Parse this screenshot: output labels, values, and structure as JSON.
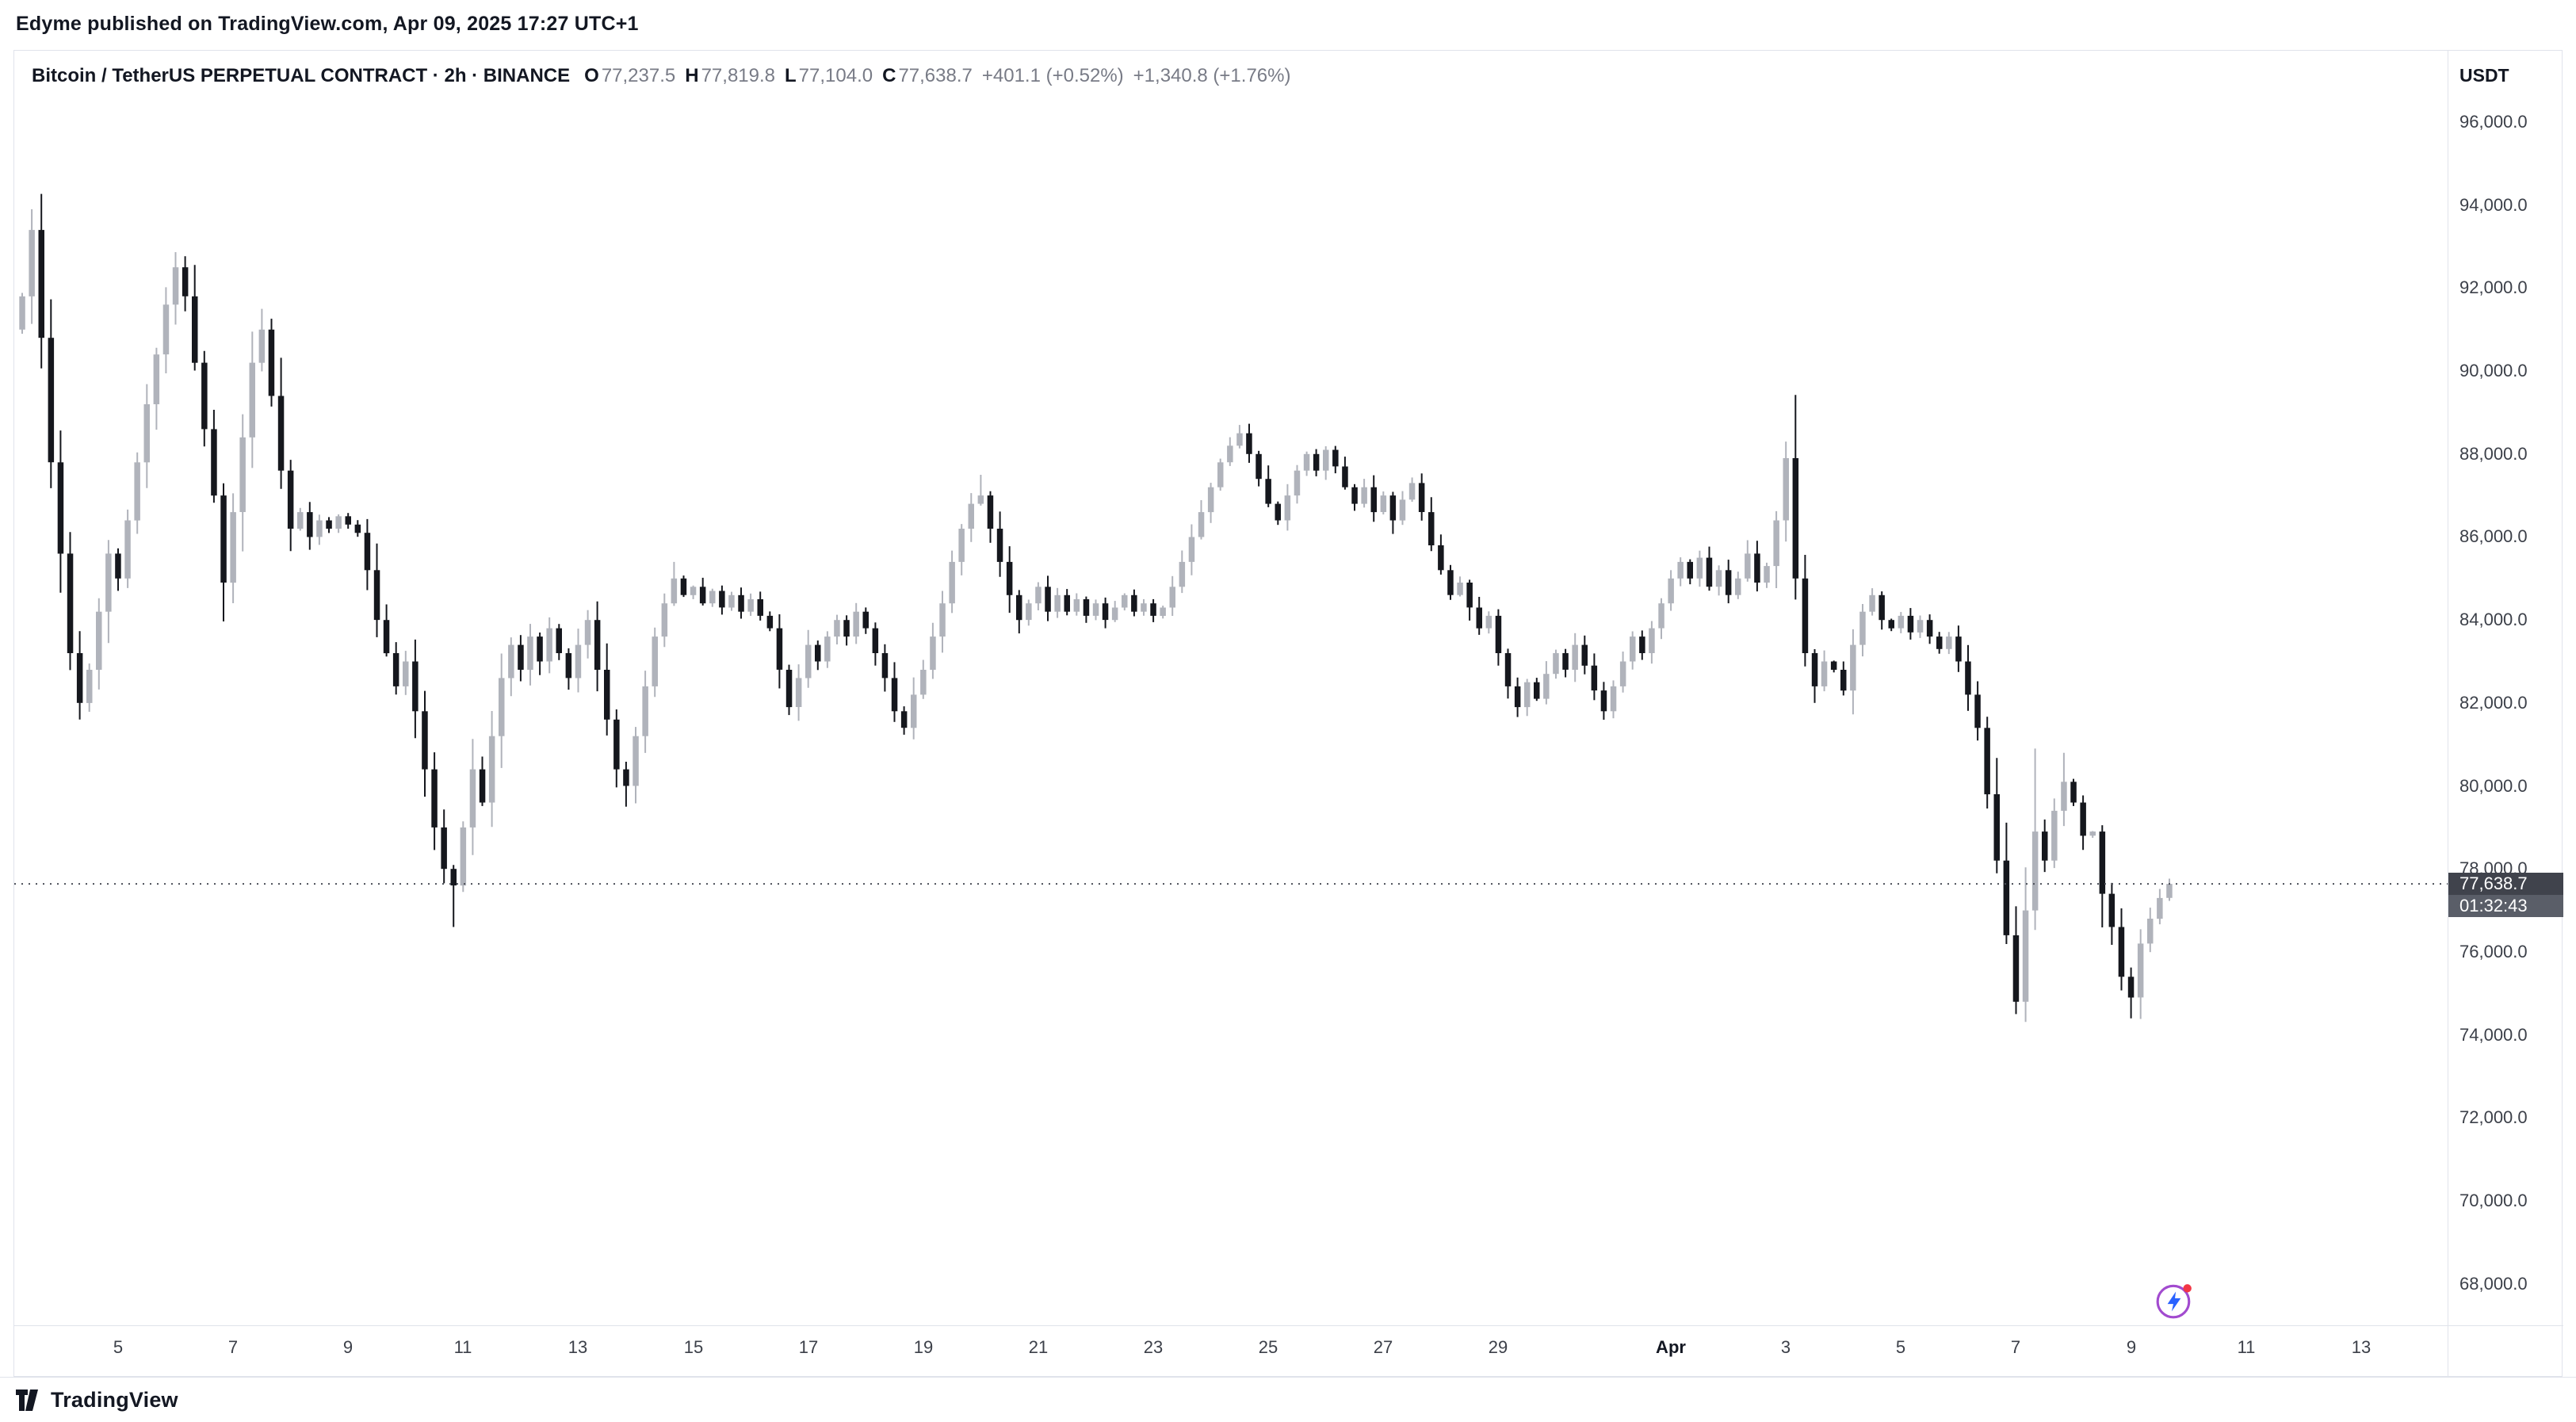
{
  "attribution": {
    "text": "Edyme published on TradingView.com, Apr 09, 2025 17:27 UTC+1"
  },
  "header": {
    "symbol_title": "Bitcoin / TetherUS PERPETUAL CONTRACT · 2h · BINANCE",
    "ohlc": {
      "o_label": "O",
      "o_value": "77,237.5",
      "h_label": "H",
      "h_value": "77,819.8",
      "l_label": "L",
      "l_value": "77,104.0",
      "c_label": "C",
      "c_value": "77,638.7",
      "change_abs": "+401.1 (+0.52%)",
      "change_ext": "+1,340.8 (+1.76%)"
    },
    "currency_label": "USDT"
  },
  "price_scale": {
    "last_price": "77,638.7",
    "countdown": "01:32:43",
    "badge_bg": "#40434C",
    "countdown_bg": "#5A5E68"
  },
  "footer": {
    "logo_text": "TradingView"
  },
  "marker_icon": {
    "ring": "#A24BCF",
    "bolt": "#2962FF",
    "dot": "#F23645"
  },
  "chart_data": {
    "type": "candlestick",
    "title": "Bitcoin / TetherUS PERPETUAL CONTRACT",
    "interval": "2h",
    "exchange": "BINANCE",
    "quote_currency": "USDT",
    "legend_position": "top-left",
    "grid": false,
    "y_axis": {
      "min": 67000,
      "max": 97720,
      "tick_values": [
        96000,
        94000,
        92000,
        90000,
        88000,
        86000,
        84000,
        82000,
        80000,
        78000,
        76000,
        74000,
        72000,
        70000,
        68000
      ]
    },
    "x_ticks": [
      {
        "label": "5",
        "i": 10
      },
      {
        "label": "7",
        "i": 22
      },
      {
        "label": "9",
        "i": 34
      },
      {
        "label": "11",
        "i": 46
      },
      {
        "label": "13",
        "i": 58
      },
      {
        "label": "15",
        "i": 70
      },
      {
        "label": "17",
        "i": 82
      },
      {
        "label": "19",
        "i": 94
      },
      {
        "label": "21",
        "i": 106
      },
      {
        "label": "23",
        "i": 118
      },
      {
        "label": "25",
        "i": 130
      },
      {
        "label": "27",
        "i": 142
      },
      {
        "label": "29",
        "i": 154
      },
      {
        "label": "Apr",
        "i": 172,
        "bold": true
      },
      {
        "label": "3",
        "i": 184
      },
      {
        "label": "5",
        "i": 196
      },
      {
        "label": "7",
        "i": 208
      },
      {
        "label": "9",
        "i": 220
      },
      {
        "label": "11",
        "i": 232
      },
      {
        "label": "13",
        "i": 244
      }
    ],
    "first_open": 91000,
    "closes": [
      91800,
      93400,
      90800,
      87800,
      85600,
      83200,
      82000,
      82800,
      84200,
      85600,
      85000,
      86400,
      87800,
      89200,
      90400,
      91600,
      92500,
      91800,
      90200,
      88600,
      87000,
      84900,
      86600,
      88400,
      90200,
      91000,
      89400,
      87600,
      86200,
      86600,
      86000,
      86400,
      86200,
      86500,
      86300,
      86100,
      85200,
      84000,
      83200,
      82400,
      83000,
      81800,
      80400,
      79000,
      78000,
      77600,
      79000,
      80400,
      79600,
      81200,
      82600,
      83400,
      82800,
      83600,
      83000,
      83800,
      83200,
      82600,
      83400,
      84000,
      82800,
      81600,
      80400,
      80000,
      81200,
      82400,
      83600,
      84400,
      85000,
      84600,
      84800,
      84400,
      84700,
      84300,
      84600,
      84200,
      84500,
      84100,
      83800,
      82800,
      81900,
      82600,
      83400,
      83000,
      83600,
      84000,
      83600,
      84200,
      83800,
      83200,
      82600,
      81800,
      81400,
      82200,
      82800,
      83600,
      84400,
      85400,
      86200,
      86800,
      87000,
      86200,
      85400,
      84600,
      84000,
      84400,
      84800,
      84200,
      84600,
      84200,
      84500,
      84100,
      84400,
      84000,
      84300,
      84600,
      84200,
      84400,
      84100,
      84300,
      84800,
      85400,
      86000,
      86600,
      87200,
      87800,
      88200,
      88500,
      88000,
      87400,
      86800,
      86400,
      87000,
      87600,
      88000,
      87600,
      88100,
      87700,
      87200,
      86800,
      87200,
      86600,
      87000,
      86400,
      86900,
      87300,
      86600,
      85800,
      85200,
      84600,
      84900,
      84300,
      83800,
      84100,
      83200,
      82400,
      81900,
      82500,
      82100,
      82700,
      83200,
      82800,
      83400,
      82900,
      82300,
      81800,
      82400,
      83000,
      83600,
      83200,
      83800,
      84400,
      85000,
      85400,
      85000,
      85500,
      84800,
      85200,
      84600,
      85000,
      85600,
      84900,
      85300,
      86400,
      87900,
      85000,
      83200,
      82400,
      83000,
      82800,
      82300,
      83400,
      84200,
      84600,
      84000,
      83800,
      84100,
      83700,
      84000,
      83600,
      83300,
      83600,
      83000,
      82200,
      81400,
      79800,
      78200,
      76400,
      74800,
      77000,
      78900,
      78200,
      79400,
      80100,
      79600,
      78800,
      78900,
      77400,
      76600,
      75400,
      74900,
      76200,
      76800,
      77300,
      77638.7
    ],
    "wick_overrides": {
      "1": {
        "high": 93900
      },
      "25": {
        "high": 91500
      },
      "45": {
        "low": 76600
      },
      "63": {
        "low": 79500
      },
      "68": {
        "high": 85400
      },
      "100": {
        "high": 87500
      },
      "127": {
        "high": 88700
      },
      "184": {
        "high": 88300
      },
      "187": {
        "low": 82000
      },
      "208": {
        "low": 74500
      },
      "210": {
        "high": 80900
      },
      "213": {
        "high": 80800
      },
      "220": {
        "low": 74400
      }
    },
    "last_close": 77638.7,
    "colors": {
      "up": "#B0B3BB",
      "down": "#15171D",
      "price_line": "#4B4F58"
    }
  }
}
